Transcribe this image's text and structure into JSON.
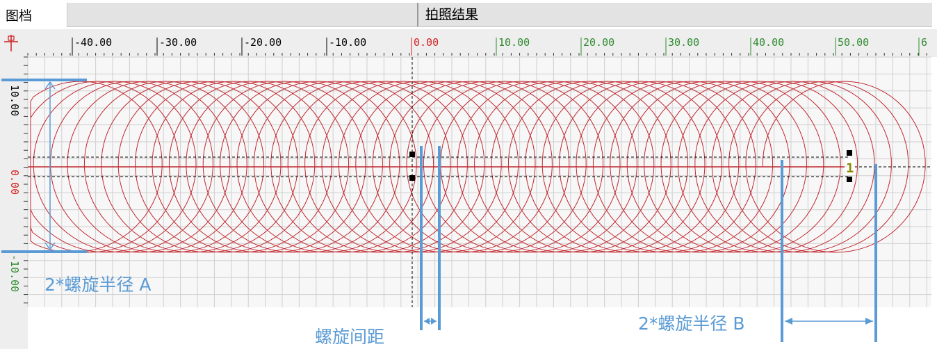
{
  "tabs": [
    {
      "label": "图档"
    },
    {
      "label": "拍照结果"
    }
  ],
  "ruler": {
    "top_labels": [
      "-40.00",
      "-30.00",
      "-20.00",
      "-10.00",
      "0.00",
      "10.00",
      "20.00",
      "30.00",
      "40.00",
      "50.00",
      "6"
    ],
    "left_labels": [
      "10.00",
      "0.00",
      "-10.00"
    ]
  },
  "marker": {
    "label": "1"
  },
  "annotations": {
    "radius_a": "2*螺旋半径 A",
    "spacing": "螺旋间距",
    "radius_b": "2*螺旋半径 B"
  },
  "colors": {
    "spiral": "#c0282f",
    "annotation": "#5b9bd5",
    "grid": "#cfcfcf",
    "ruler_negative": "#000000",
    "ruler_zero": "#d42020",
    "ruler_positive": "#2e8b2e"
  }
}
